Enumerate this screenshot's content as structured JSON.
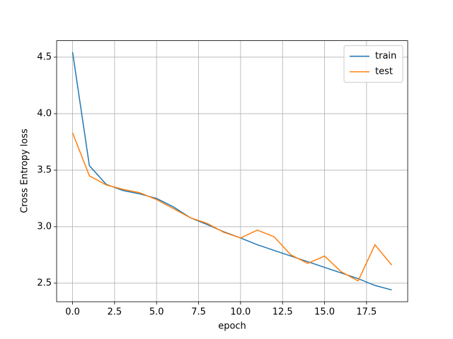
{
  "chart_data": {
    "type": "line",
    "x_label": "epoch",
    "y_label": "Cross Entropy loss",
    "x": [
      0,
      1,
      2,
      3,
      4,
      5,
      6,
      7,
      8,
      9,
      10,
      11,
      12,
      13,
      14,
      15,
      16,
      17,
      18,
      19
    ],
    "series": [
      {
        "name": "train",
        "color": "#1f77b4",
        "values": [
          4.544,
          3.54,
          3.375,
          3.32,
          3.29,
          3.25,
          3.175,
          3.08,
          3.02,
          2.955,
          2.9,
          2.84,
          2.79,
          2.74,
          2.69,
          2.64,
          2.59,
          2.54,
          2.48,
          2.44
        ]
      },
      {
        "name": "test",
        "color": "#ff7f0e",
        "values": [
          3.83,
          3.45,
          3.37,
          3.33,
          3.3,
          3.24,
          3.16,
          3.08,
          3.03,
          2.95,
          2.9,
          2.97,
          2.91,
          2.75,
          2.675,
          2.74,
          2.6,
          2.52,
          2.84,
          2.66
        ]
      }
    ],
    "xlim": [
      -0.95,
      19.95
    ],
    "xticks": [
      {
        "value": 0,
        "label": "0.0"
      },
      2.5,
      {
        "value": 5,
        "label": "5.0"
      },
      7.5,
      {
        "value": 10,
        "label": "10.0"
      },
      12.5,
      {
        "value": 15,
        "label": "15.0"
      },
      17.5
    ],
    "ylim": [
      2.336,
      4.646
    ],
    "yticks": [
      2.5,
      {
        "value": 3,
        "label": "3.0"
      },
      3.5,
      {
        "value": 4,
        "label": "4.0"
      },
      4.5
    ],
    "grid": true,
    "legend": "upper-right"
  }
}
